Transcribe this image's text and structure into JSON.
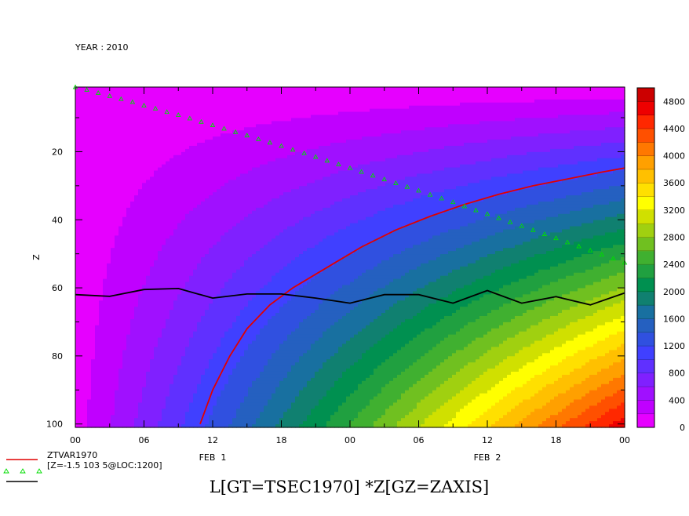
{
  "header": {
    "year_label": "YEAR : 2010"
  },
  "title": "L[GT=TSEC1970] *Z[GZ=ZAXIS]",
  "chart_data": {
    "type": "heatmap",
    "xlabel": "",
    "ylabel": "Z",
    "x_hours_range": [
      0,
      48
    ],
    "ylim": [
      1,
      101
    ],
    "y_reversed": true,
    "x_tick_labels": [
      "00",
      "06",
      "12",
      "18",
      "00",
      "06",
      "12",
      "18",
      "00"
    ],
    "x_tick_hours": [
      0,
      6,
      12,
      18,
      24,
      30,
      36,
      42,
      48
    ],
    "x_date_labels": [
      "FEB  1",
      "FEB  2"
    ],
    "y_ticks": [
      20,
      40,
      60,
      80,
      100
    ],
    "colorbar": {
      "min": 0,
      "max": 5000,
      "step": 200,
      "tick_labels": [
        "0",
        "400",
        "800",
        "1200",
        "1600",
        "2000",
        "2400",
        "2800",
        "3200",
        "3600",
        "4000",
        "4400",
        "4800"
      ],
      "tick_values": [
        0,
        400,
        800,
        1200,
        1600,
        2000,
        2400,
        2800,
        3200,
        3600,
        4000,
        4400,
        4800
      ],
      "colors": [
        "#e600ff",
        "#c000ff",
        "#a010ff",
        "#8020ff",
        "#6030ff",
        "#4040ff",
        "#3050e0",
        "#2560c0",
        "#1870a0",
        "#108070",
        "#009050",
        "#20a040",
        "#40b030",
        "#70c020",
        "#a0d010",
        "#d0e000",
        "#ffff00",
        "#ffe000",
        "#ffc000",
        "#ffa000",
        "#ff7800",
        "#ff5000",
        "#ff2800",
        "#ee0000",
        "#cc0000"
      ]
    },
    "series": [
      {
        "name": "ZTVAR1970",
        "color": "#e00000",
        "style": "line",
        "x_hours": [
          10.9,
          12,
          13.5,
          15,
          17,
          19,
          21,
          23,
          25,
          28,
          31,
          34,
          37,
          40,
          43,
          46,
          48
        ],
        "z": [
          100,
          90,
          80,
          72,
          65,
          60,
          56,
          52,
          48,
          43,
          39,
          35.5,
          32.5,
          30,
          28,
          26,
          24.8
        ]
      },
      {
        "name": "[Z=-1.5 103 5@LOC:1200]",
        "color": "#00dd00",
        "style": "triangles",
        "x_hours": [
          0,
          1,
          2,
          3,
          4,
          5,
          6,
          7,
          8,
          9,
          10,
          11,
          12,
          13,
          14,
          15,
          16,
          17,
          18,
          19,
          20,
          21,
          22,
          23,
          24,
          25,
          26,
          27,
          28,
          29,
          30,
          31,
          32,
          33,
          34,
          35,
          36,
          37,
          38,
          39,
          40,
          41,
          42,
          43,
          44,
          45,
          46,
          47,
          48
        ],
        "z": [
          1,
          1.8,
          2.7,
          3.6,
          4.5,
          5.4,
          6.4,
          7.3,
          8.3,
          9.2,
          10.2,
          11.2,
          12.2,
          13.2,
          14.2,
          15.2,
          16.3,
          17.3,
          18.3,
          19.4,
          20.4,
          21.5,
          22.6,
          23.7,
          24.8,
          25.9,
          27,
          28.1,
          29.2,
          30.3,
          31.4,
          32.6,
          33.7,
          34.8,
          36,
          37.2,
          38.3,
          39.5,
          40.7,
          41.8,
          43,
          44.2,
          45.4,
          46.6,
          47.8,
          49,
          50.2,
          51.4,
          52.6
        ]
      },
      {
        "name": "",
        "color": "#000000",
        "style": "line",
        "x_hours": [
          0,
          3,
          6,
          9,
          12,
          15,
          18,
          21,
          24,
          27,
          30,
          33,
          36,
          39,
          42,
          45,
          48
        ],
        "z": [
          62,
          62.5,
          60.5,
          60.2,
          63,
          61.8,
          61.8,
          63,
          64.5,
          62,
          62,
          64.5,
          60.8,
          64.5,
          62.6,
          65,
          61.5
        ]
      }
    ],
    "legend": [
      {
        "label": "ZTVAR1970",
        "color": "#e00000",
        "style": "line"
      },
      {
        "label": "[Z=-1.5 103 5@LOC:1200]",
        "color": "#00dd00",
        "style": "triangles"
      },
      {
        "label": "",
        "color": "#000000",
        "style": "line"
      }
    ],
    "legend_position": "bottom-left",
    "field_model": {
      "kind": "l_times_z",
      "l_at_48h": 47,
      "field_scale": 1.0
    }
  }
}
